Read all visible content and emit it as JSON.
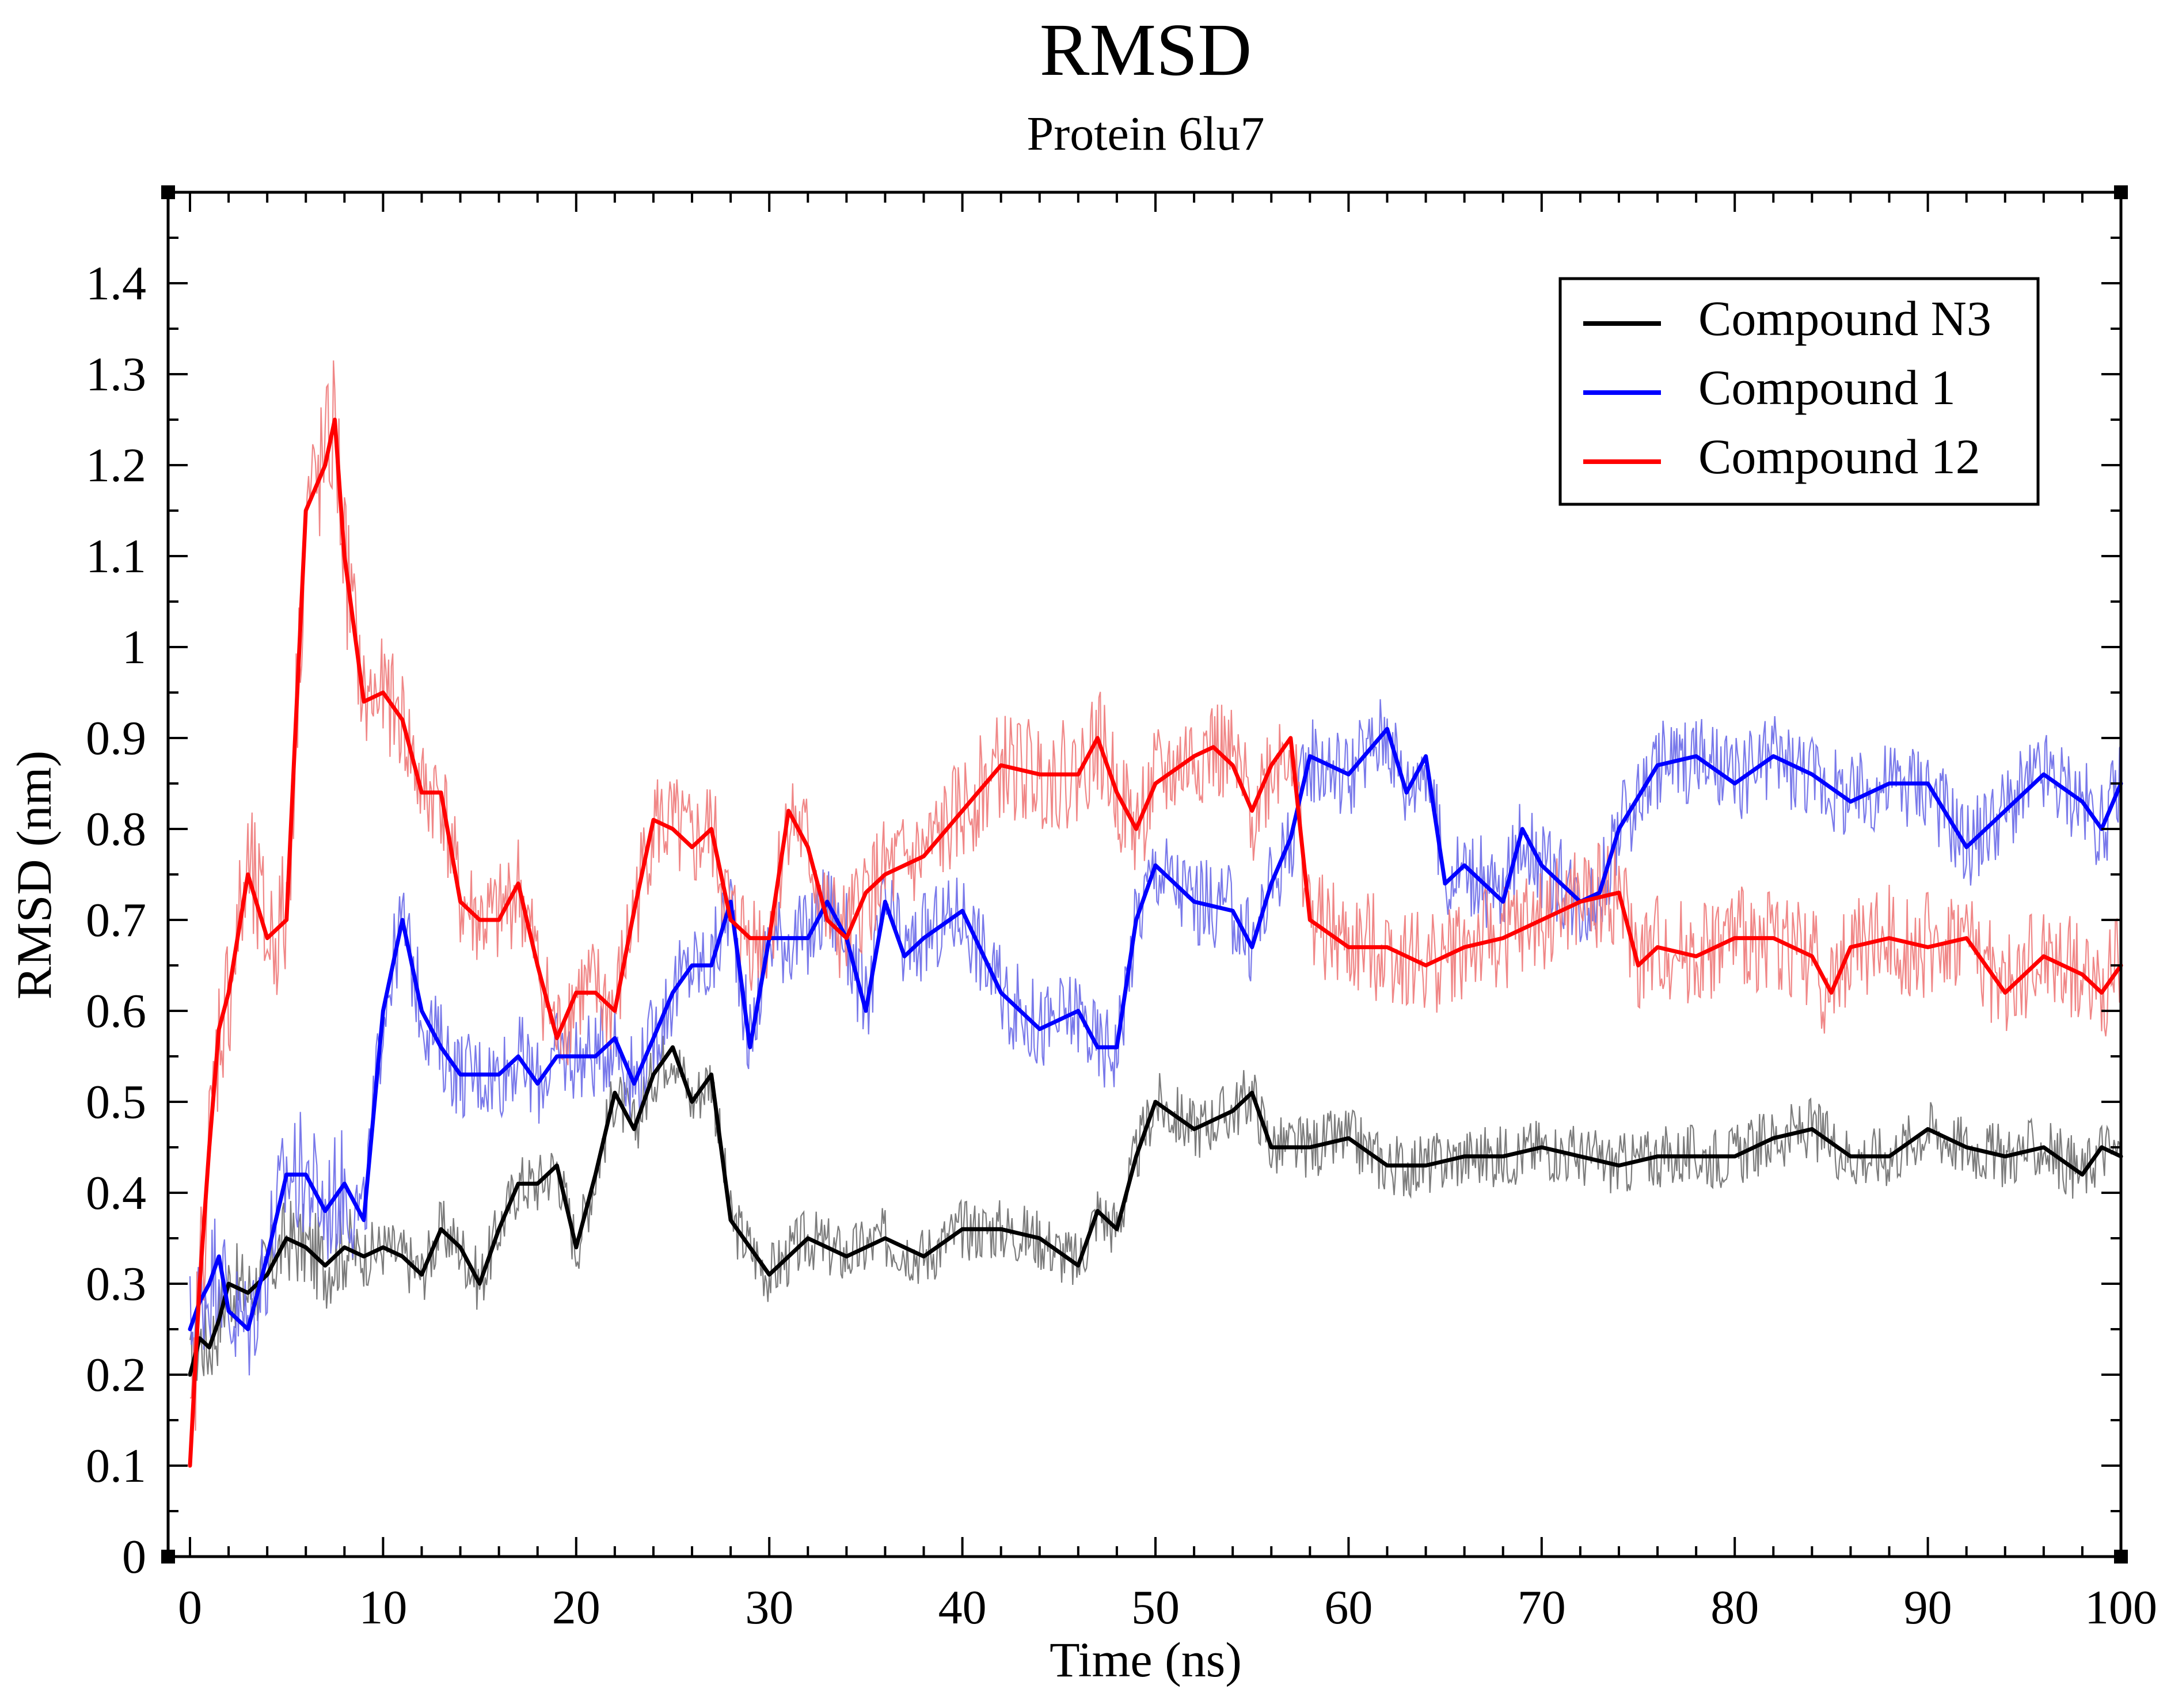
{
  "chart_data": {
    "type": "line",
    "title": "RMSD",
    "subtitle": "Protein 6lu7",
    "xlabel": "Time (ns)",
    "ylabel": "RMSD (nm)",
    "xlim": [
      0,
      100
    ],
    "ylim": [
      0,
      1.5
    ],
    "xticks": [
      0,
      10,
      20,
      30,
      40,
      50,
      60,
      70,
      80,
      90,
      100
    ],
    "xtick_labels": [
      "0",
      "10",
      "20",
      "30",
      "40",
      "50",
      "60",
      "70",
      "80",
      "90",
      "100"
    ],
    "yticks": [
      0,
      0.1,
      0.2,
      0.3,
      0.4,
      0.5,
      0.6,
      0.7,
      0.8,
      0.9,
      1,
      1.1,
      1.2,
      1.3,
      1.4
    ],
    "ytick_labels": [
      "0",
      "0.1",
      "0.2",
      "0.3",
      "0.4",
      "0.5",
      "0.6",
      "0.7",
      "0.8",
      "0.9",
      "1",
      "1.1",
      "1.2",
      "1.3",
      "1.4"
    ],
    "legend_position": "top-right",
    "grid": false,
    "series": [
      {
        "name": "Compound N3",
        "color": "#000000",
        "noise_color": "#6e6e6e",
        "x": [
          0,
          0.5,
          1,
          1.5,
          2,
          3,
          4,
          5,
          6,
          7,
          8,
          9,
          10,
          11,
          12,
          13,
          14,
          15,
          16,
          17,
          18,
          19,
          20,
          21,
          22,
          23,
          24,
          25,
          26,
          27,
          28,
          29,
          30,
          32,
          34,
          36,
          38,
          40,
          42,
          44,
          46,
          47,
          48,
          49,
          50,
          52,
          54,
          55,
          56,
          58,
          60,
          62,
          64,
          66,
          68,
          70,
          72,
          74,
          76,
          78,
          80,
          82,
          84,
          86,
          88,
          90,
          92,
          94,
          96,
          98,
          99,
          100
        ],
        "values": [
          0.2,
          0.24,
          0.23,
          0.26,
          0.3,
          0.29,
          0.31,
          0.35,
          0.34,
          0.32,
          0.34,
          0.33,
          0.34,
          0.33,
          0.31,
          0.36,
          0.34,
          0.3,
          0.36,
          0.41,
          0.41,
          0.43,
          0.34,
          0.42,
          0.51,
          0.47,
          0.53,
          0.56,
          0.5,
          0.53,
          0.37,
          0.34,
          0.31,
          0.35,
          0.33,
          0.35,
          0.33,
          0.36,
          0.36,
          0.35,
          0.32,
          0.38,
          0.36,
          0.44,
          0.5,
          0.47,
          0.49,
          0.51,
          0.45,
          0.45,
          0.46,
          0.43,
          0.43,
          0.44,
          0.44,
          0.45,
          0.44,
          0.43,
          0.44,
          0.44,
          0.44,
          0.46,
          0.47,
          0.44,
          0.44,
          0.47,
          0.45,
          0.44,
          0.45,
          0.42,
          0.45,
          0.44
        ]
      },
      {
        "name": "Compound 1",
        "color": "#0000ff",
        "noise_color": "#6a6ae8",
        "x": [
          0,
          0.5,
          1,
          1.5,
          2,
          3,
          4,
          5,
          6,
          7,
          8,
          9,
          10,
          11,
          12,
          13,
          14,
          15,
          16,
          17,
          18,
          19,
          20,
          21,
          22,
          23,
          24,
          25,
          26,
          27,
          28,
          29,
          30,
          31,
          32,
          33,
          34,
          35,
          36,
          37,
          38,
          40,
          42,
          44,
          46,
          47,
          48,
          49,
          50,
          52,
          54,
          55,
          56,
          57,
          58,
          60,
          62,
          63,
          64,
          65,
          66,
          68,
          69,
          70,
          72,
          73,
          74,
          76,
          78,
          80,
          82,
          84,
          86,
          88,
          90,
          92,
          94,
          96,
          98,
          99,
          100
        ],
        "values": [
          0.25,
          0.28,
          0.3,
          0.33,
          0.27,
          0.25,
          0.33,
          0.42,
          0.42,
          0.38,
          0.41,
          0.37,
          0.6,
          0.7,
          0.6,
          0.56,
          0.53,
          0.53,
          0.53,
          0.55,
          0.52,
          0.55,
          0.55,
          0.55,
          0.57,
          0.52,
          0.57,
          0.62,
          0.65,
          0.65,
          0.72,
          0.56,
          0.68,
          0.68,
          0.68,
          0.72,
          0.68,
          0.6,
          0.72,
          0.66,
          0.68,
          0.71,
          0.62,
          0.58,
          0.6,
          0.56,
          0.56,
          0.7,
          0.76,
          0.72,
          0.71,
          0.67,
          0.74,
          0.79,
          0.88,
          0.86,
          0.91,
          0.84,
          0.88,
          0.74,
          0.76,
          0.72,
          0.8,
          0.76,
          0.72,
          0.73,
          0.8,
          0.87,
          0.88,
          0.85,
          0.88,
          0.86,
          0.83,
          0.85,
          0.85,
          0.78,
          0.82,
          0.86,
          0.83,
          0.8,
          0.85
        ]
      },
      {
        "name": "Compound 12",
        "color": "#ff0000",
        "noise_color": "#ee7a7a",
        "x": [
          0,
          0.5,
          1,
          1.5,
          2,
          3,
          4,
          5,
          6,
          7,
          7.5,
          8,
          9,
          10,
          11,
          12,
          13,
          14,
          15,
          16,
          17,
          18,
          19,
          20,
          21,
          22,
          23,
          24,
          25,
          26,
          27,
          28,
          29,
          30,
          31,
          32,
          33,
          34,
          35,
          36,
          38,
          40,
          42,
          44,
          46,
          47,
          48,
          49,
          50,
          52,
          53,
          54,
          55,
          56,
          57,
          58,
          60,
          62,
          64,
          66,
          68,
          70,
          72,
          74,
          75,
          76,
          78,
          80,
          82,
          84,
          85,
          86,
          88,
          90,
          92,
          94,
          96,
          98,
          99,
          100
        ],
        "values": [
          0.1,
          0.3,
          0.45,
          0.58,
          0.62,
          0.75,
          0.68,
          0.7,
          1.15,
          1.2,
          1.25,
          1.1,
          0.94,
          0.95,
          0.92,
          0.84,
          0.84,
          0.72,
          0.7,
          0.7,
          0.74,
          0.65,
          0.57,
          0.62,
          0.62,
          0.6,
          0.71,
          0.81,
          0.8,
          0.78,
          0.8,
          0.7,
          0.68,
          0.68,
          0.82,
          0.78,
          0.7,
          0.68,
          0.73,
          0.75,
          0.77,
          0.82,
          0.87,
          0.86,
          0.86,
          0.9,
          0.84,
          0.8,
          0.85,
          0.88,
          0.89,
          0.87,
          0.82,
          0.87,
          0.9,
          0.7,
          0.67,
          0.67,
          0.65,
          0.67,
          0.68,
          0.7,
          0.72,
          0.73,
          0.65,
          0.67,
          0.66,
          0.68,
          0.68,
          0.66,
          0.62,
          0.67,
          0.68,
          0.67,
          0.68,
          0.62,
          0.66,
          0.64,
          0.62,
          0.65
        ]
      }
    ]
  }
}
